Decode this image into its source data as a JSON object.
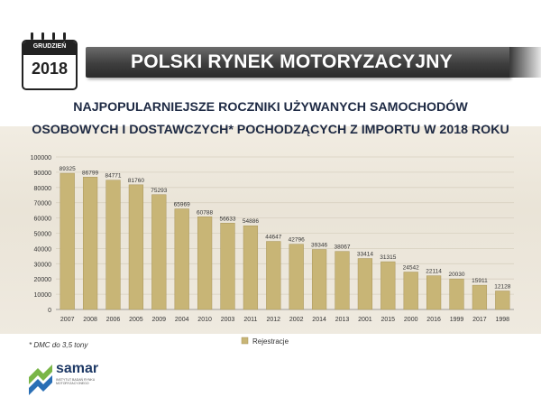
{
  "header": {
    "calendar_month": "GRUDZIEŃ",
    "calendar_year": "2018",
    "title": "POLSKI RYNEK MOTORYZACYJNY"
  },
  "chart_title_line1": "NAJPOPULARNIEJSZE ROCZNIKI UŻYWANYCH SAMOCHODÓW",
  "chart_title_line2": "OSOBOWYCH I DOSTAWCZYCH* POCHODZĄCYCH Z IMPORTU W 2018 ROKU",
  "footnote": "* DMC do 3,5 tony",
  "logo": {
    "name": "samar",
    "tagline": "INSTYTUT BADAŃ RYNKU MOTORYZACYJNEGO"
  },
  "colors": {
    "bar": "#c8b576",
    "bar_edge": "#a8955a",
    "title_bar": "#3e3e3e",
    "logo_blue": "#1f3a66",
    "logo_green": "#7ab648"
  },
  "chart_data": {
    "type": "bar",
    "categories": [
      "2007",
      "2008",
      "2006",
      "2005",
      "2009",
      "2004",
      "2010",
      "2003",
      "2011",
      "2012",
      "2002",
      "2014",
      "2013",
      "2001",
      "2015",
      "2000",
      "2016",
      "1999",
      "2017",
      "1998"
    ],
    "series": [
      {
        "name": "Rejestracje",
        "values": [
          89325,
          86799,
          84771,
          81760,
          75293,
          65969,
          60788,
          56633,
          54886,
          44647,
          42796,
          39346,
          38067,
          33414,
          31315,
          24542,
          22114,
          20030,
          15911,
          12128
        ]
      }
    ],
    "data_labels": [
      "89325",
      "86799",
      "84771",
      "81760",
      "75293",
      "65969",
      "60788",
      "56633",
      "54886",
      "44647",
      "42796",
      "39346",
      "38067",
      "33414",
      "31315",
      "24542",
      "22114",
      "20030",
      "15911",
      "12128"
    ],
    "ylim": [
      0,
      100000
    ],
    "yticks": [
      "0",
      "10000",
      "20000",
      "30000",
      "40000",
      "50000",
      "60000",
      "70000",
      "80000",
      "90000",
      "100000"
    ],
    "grid": true,
    "legend_position": "bottom-center"
  }
}
